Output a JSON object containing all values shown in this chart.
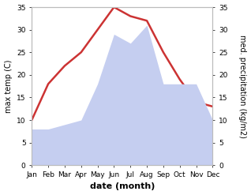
{
  "months": [
    "Jan",
    "Feb",
    "Mar",
    "Apr",
    "May",
    "Jun",
    "Jul",
    "Aug",
    "Sep",
    "Oct",
    "Nov",
    "Dec"
  ],
  "temperature": [
    10,
    18,
    22,
    25,
    30,
    35,
    33,
    32,
    25,
    19,
    14,
    13
  ],
  "precipitation": [
    8,
    8,
    9,
    10,
    18,
    29,
    27,
    31,
    18,
    18,
    18,
    10
  ],
  "temp_color": "#cc3333",
  "precip_color": "#c5cef0",
  "temp_ylim": [
    0,
    35
  ],
  "precip_ylim": [
    0,
    35
  ],
  "xlabel": "date (month)",
  "ylabel_left": "max temp (C)",
  "ylabel_right": "med. precipitation (kg/m2)",
  "temp_linewidth": 1.8,
  "background_color": "#ffffff",
  "tick_labelsize": 6.5,
  "ylabel_fontsize": 7,
  "xlabel_fontsize": 8
}
